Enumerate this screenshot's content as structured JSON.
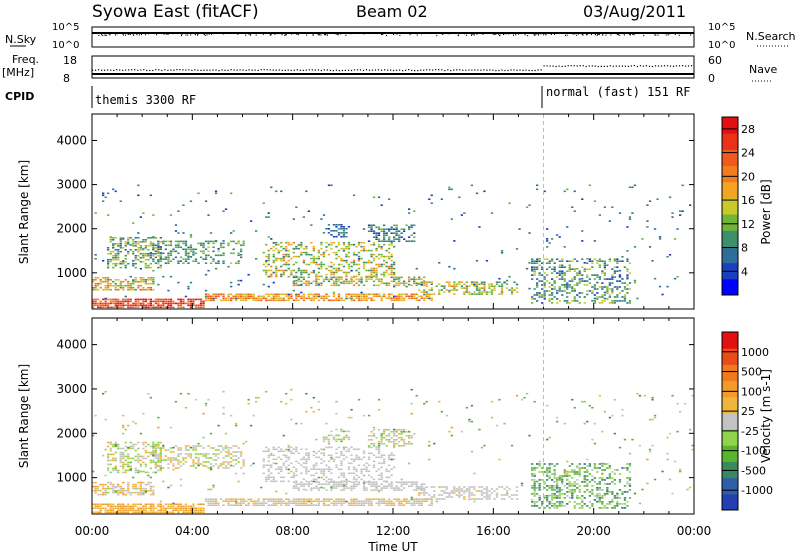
{
  "header": {
    "radar": "Syowa East (fitACF)",
    "beam": "Beam 02",
    "date": "03/Aug/2011"
  },
  "status_panels": {
    "nsky_label": "N.Sky",
    "nsearch_label": "N.Search",
    "freq_label": "Freq.",
    "freq_unit": "[MHz]",
    "nave_label": "Nave",
    "cpid_label": "CPID",
    "noise_left_ticks": [
      "10^5",
      "10^0"
    ],
    "noise_right_ticks": [
      "10^5",
      "10^0"
    ],
    "freq_ticks": [
      "18",
      "8"
    ],
    "nave_ticks": [
      "60",
      "0"
    ],
    "cpid_segments": [
      {
        "label": "themis 3300 RF",
        "start_hour": 0
      },
      {
        "label": "normal (fast) 151 RF",
        "start_hour": 18
      }
    ]
  },
  "chart_data": [
    {
      "type": "heatmap",
      "name": "power",
      "xlabel": "",
      "ylabel": "Slant Range [km]",
      "xlim": [
        0,
        24
      ],
      "ylim": [
        180,
        4600
      ],
      "yticks": [
        1000,
        2000,
        3000,
        4000
      ],
      "colorbar": {
        "label": "Power [dB]",
        "ticks": [
          "4",
          "8",
          "12",
          "16",
          "20",
          "24",
          "28"
        ],
        "range": [
          0,
          30
        ],
        "colors": [
          "#0000ff",
          "#1a3fbf",
          "#2f6e9a",
          "#3e8f6c",
          "#6fb536",
          "#c9c92b",
          "#f4a323",
          "#f27d1f",
          "#f05a1c",
          "#e8331a",
          "#e30f12"
        ]
      },
      "vertical_marker_hour": 18
    },
    {
      "type": "heatmap",
      "name": "velocity",
      "xlabel": "Time UT",
      "ylabel": "Slant Range [km]",
      "xlim": [
        0,
        24
      ],
      "ylim": [
        180,
        4600
      ],
      "yticks": [
        1000,
        2000,
        3000,
        4000
      ],
      "xticks": [
        "00:00",
        "04:00",
        "08:00",
        "12:00",
        "16:00",
        "20:00",
        "00:00"
      ],
      "colorbar": {
        "label": "Velocity [m s-1]",
        "ticks": [
          "1000",
          "500",
          "100",
          "25",
          "-25",
          "-100",
          "-500",
          "-1000"
        ],
        "colors": [
          "#2440b0",
          "#2f5fa8",
          "#3a8a5e",
          "#58b52e",
          "#8fd44a",
          "#c3c3c3",
          "#f0b63c",
          "#f29a2a",
          "#f07a20",
          "#eb4a1a",
          "#e31010"
        ]
      },
      "vertical_marker_hour": 18
    }
  ]
}
